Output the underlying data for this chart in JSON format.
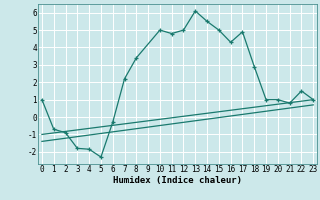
{
  "xlabel": "Humidex (Indice chaleur)",
  "bg_color": "#cce8ea",
  "grid_color": "#ffffff",
  "line_color": "#1a7a6e",
  "line1_x": [
    0,
    1,
    2,
    3,
    4,
    5,
    6,
    7,
    8,
    10,
    11,
    12,
    13,
    14,
    15,
    16,
    17,
    18,
    19,
    20,
    21,
    22,
    23
  ],
  "line1_y": [
    1.0,
    -0.7,
    -0.9,
    -1.8,
    -1.85,
    -2.3,
    -0.3,
    2.2,
    3.4,
    5.0,
    4.8,
    5.0,
    6.1,
    5.5,
    5.0,
    4.3,
    4.9,
    2.9,
    1.0,
    1.0,
    0.8,
    1.5,
    1.0
  ],
  "line2_x": [
    0,
    23
  ],
  "line2_y": [
    -1.0,
    1.0
  ],
  "line3_x": [
    0,
    23
  ],
  "line3_y": [
    -1.4,
    0.7
  ],
  "ylim": [
    -2.7,
    6.5
  ],
  "xlim": [
    -0.3,
    23.3
  ],
  "yticks": [
    -2,
    -1,
    0,
    1,
    2,
    3,
    4,
    5,
    6
  ],
  "xticks": [
    0,
    1,
    2,
    3,
    4,
    5,
    6,
    7,
    8,
    9,
    10,
    11,
    12,
    13,
    14,
    15,
    16,
    17,
    18,
    19,
    20,
    21,
    22,
    23
  ],
  "tick_fontsize": 5.5,
  "label_fontsize": 6.5
}
